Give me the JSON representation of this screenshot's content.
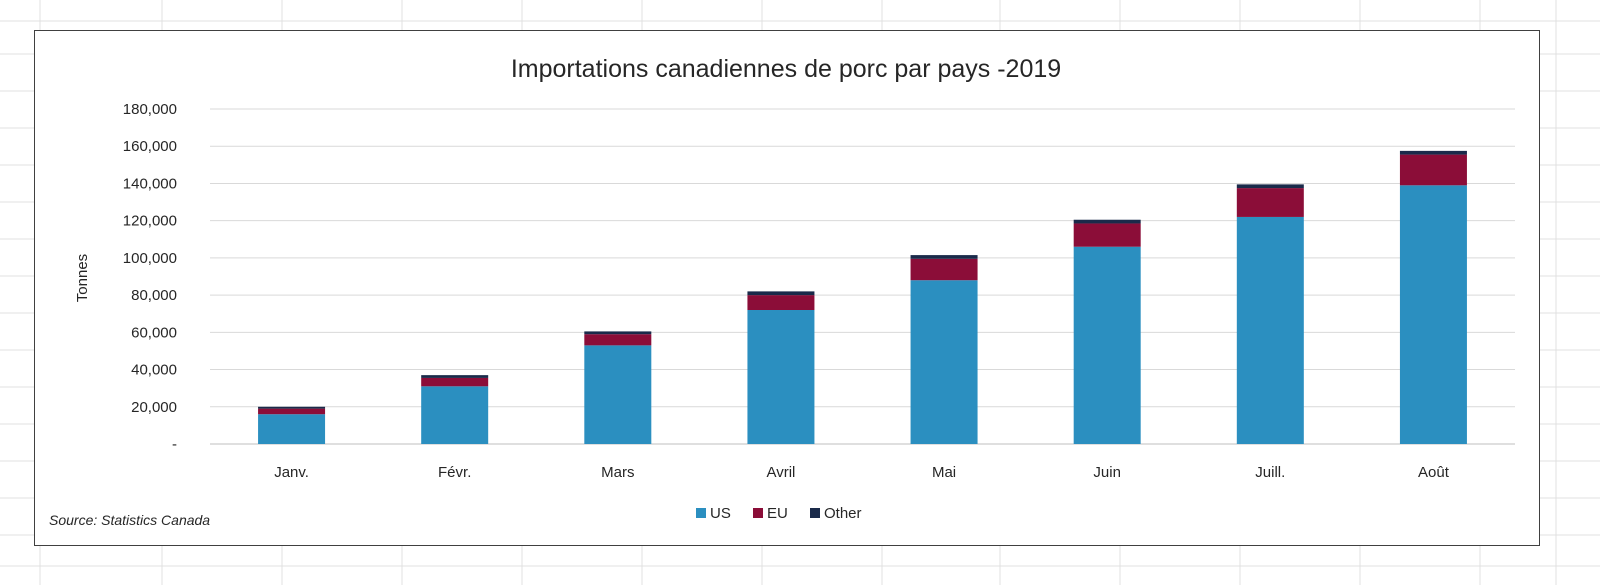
{
  "chart_data": {
    "type": "bar",
    "stacked": true,
    "title": "Importations canadiennes de porc par pays -2019",
    "ylabel": "Tonnes",
    "xlabel": "",
    "categories": [
      "Janv.",
      "Févr.",
      "Mars",
      "Avril",
      "Mai",
      "Juin",
      "Juill.",
      "Août"
    ],
    "series": [
      {
        "name": "US",
        "color": "#2b8fc0",
        "values": [
          16000,
          31000,
          53000,
          72000,
          88000,
          106000,
          122000,
          139000
        ]
      },
      {
        "name": "EU",
        "color": "#8b0d38",
        "values": [
          3000,
          4500,
          6000,
          8000,
          11500,
          12500,
          15500,
          16500
        ]
      },
      {
        "name": "Other",
        "color": "#1a2a4a",
        "values": [
          1000,
          1500,
          1500,
          2000,
          2000,
          2000,
          2000,
          2000
        ]
      }
    ],
    "ylim": [
      0,
      180000
    ],
    "y_ticks": [
      "-",
      "20,000",
      "40,000",
      "60,000",
      "80,000",
      "100,000",
      "120,000",
      "140,000",
      "160,000",
      "180,000"
    ],
    "grid": true,
    "legend_position": "bottom",
    "annotation": "Source: Statistics Canada"
  }
}
